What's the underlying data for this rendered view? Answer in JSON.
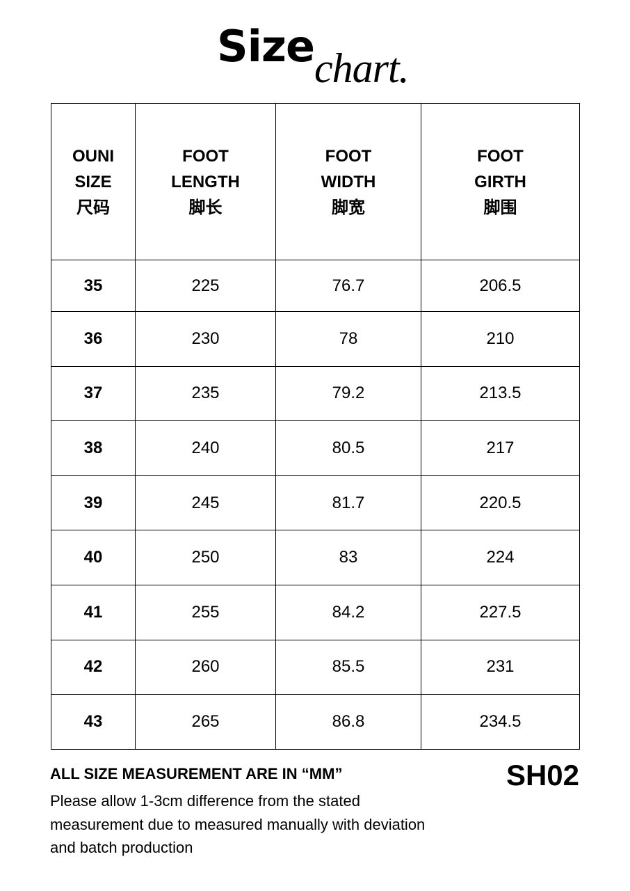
{
  "title": {
    "main": "Size",
    "script": "chart."
  },
  "table": {
    "headers": [
      [
        "OUNI",
        "SIZE",
        "尺码"
      ],
      [
        "FOOT",
        "LENGTH",
        "脚长"
      ],
      [
        "FOOT",
        "WIDTH",
        "脚宽"
      ],
      [
        "FOOT",
        "GIRTH",
        "脚围"
      ]
    ],
    "rows": [
      [
        "35",
        "225",
        "76.7",
        "206.5"
      ],
      [
        "36",
        "230",
        "78",
        "210"
      ],
      [
        "37",
        "235",
        "79.2",
        "213.5"
      ],
      [
        "38",
        "240",
        "80.5",
        "217"
      ],
      [
        "39",
        "245",
        "81.7",
        "220.5"
      ],
      [
        "40",
        "250",
        "83",
        "224"
      ],
      [
        "41",
        "255",
        "84.2",
        "227.5"
      ],
      [
        "42",
        "260",
        "85.5",
        "231"
      ],
      [
        "43",
        "265",
        "86.8",
        "234.5"
      ]
    ]
  },
  "footer": {
    "unit_note": "ALL SIZE MEASUREMENT ARE IN  “MM”",
    "code": "SH02",
    "disclaimer_lines": [
      "Please allow 1-3cm difference from the stated",
      "measurement due to measured manually with deviation",
      "and batch production"
    ]
  }
}
